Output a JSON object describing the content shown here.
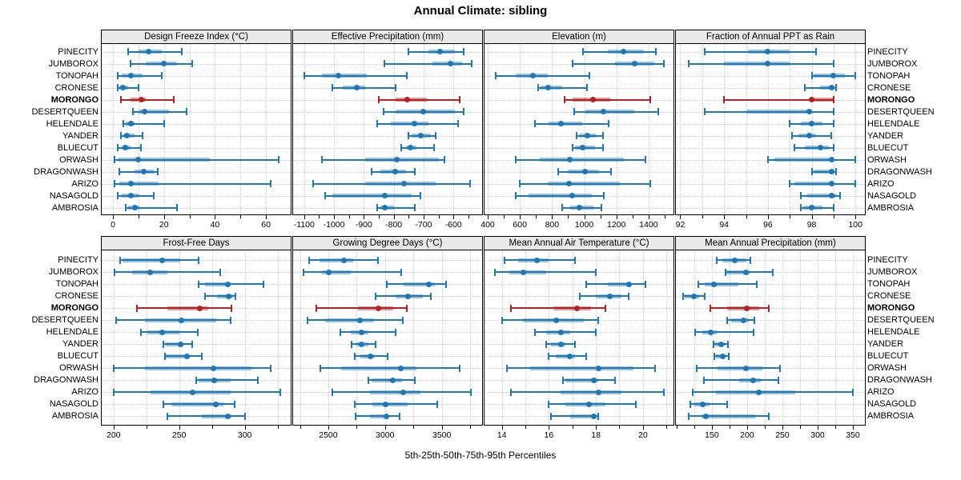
{
  "title": "Annual Climate: sibling",
  "caption": "5th-25th-50th-75th-95th Percentiles",
  "colors": {
    "series": "#1f78b4",
    "highlight": "#b22222",
    "band_alpha": 0.45,
    "header_bg": "#e9e9e9",
    "grid": "#c8c8c8"
  },
  "sites": [
    "PINECITY",
    "JUMBOROX",
    "TONOPAH",
    "CRONESE",
    "MORONGO",
    "DESERTQUEEN",
    "HELENDALE",
    "YANDER",
    "BLUECUT",
    "ORWASH",
    "DRAGONWASH",
    "ARIZO",
    "NASAGOLD",
    "AMBROSIA"
  ],
  "highlight_site": "MORONGO",
  "chart_data": {
    "type": "dotplot-percentile-trellis",
    "layout": "2 rows x 4 cols, site labels on both sides",
    "percentile_levels": [
      5,
      25,
      50,
      75,
      95
    ],
    "grid": "dotted",
    "panels": [
      {
        "label": "Design Freeze Index (°C)",
        "axis": {
          "min": -4.4,
          "max": 69.7,
          "tick_step": 10,
          "grid_step": 10,
          "labels": [
            0,
            20,
            40,
            60
          ]
        },
        "series": [
          [
            6,
            10,
            14,
            19,
            27
          ],
          [
            7,
            13,
            20,
            25,
            31
          ],
          [
            2,
            3.5,
            7,
            11.5,
            19
          ],
          [
            2,
            2.5,
            4,
            6,
            10
          ],
          [
            3,
            7,
            11,
            13,
            24
          ],
          [
            8,
            10,
            12.5,
            22,
            29
          ],
          [
            4,
            5,
            7,
            8.5,
            20
          ],
          [
            3,
            4,
            5.5,
            8.5,
            11.5
          ],
          [
            2,
            3.5,
            5,
            7,
            11
          ],
          [
            0.5,
            2,
            10,
            38,
            65
          ],
          [
            2.5,
            8.5,
            12,
            16,
            17.5
          ],
          [
            0.5,
            2.5,
            7,
            18,
            62
          ],
          [
            2,
            3.5,
            7,
            10,
            16
          ],
          [
            5,
            6,
            8.5,
            10.5,
            25
          ]
        ]
      },
      {
        "label": "Effective Precipitation (mm)",
        "axis": {
          "min": -1137,
          "max": -504,
          "tick_step": 50,
          "grid_step": 100,
          "labels": [
            -1100,
            -1000,
            -900,
            -800,
            -700,
            -600
          ]
        },
        "series": [
          [
            -750,
            -685,
            -645,
            -595,
            -565
          ],
          [
            -830,
            -670,
            -610,
            -570,
            -540
          ],
          [
            -1100,
            -1040,
            -985,
            -890,
            -755
          ],
          [
            -1005,
            -970,
            -925,
            -895,
            -795
          ],
          [
            -850,
            -795,
            -755,
            -690,
            -580
          ],
          [
            -835,
            -795,
            -700,
            -595,
            -565
          ],
          [
            -855,
            -810,
            -730,
            -685,
            -585
          ],
          [
            -750,
            -740,
            -710,
            -675,
            -660
          ],
          [
            -775,
            -760,
            -745,
            -725,
            -665
          ],
          [
            -1040,
            -895,
            -790,
            -650,
            -630
          ],
          [
            -875,
            -845,
            -795,
            -760,
            -730
          ],
          [
            -1070,
            -895,
            -765,
            -660,
            -545
          ],
          [
            -1030,
            -1005,
            -830,
            -740,
            -710
          ],
          [
            -855,
            -845,
            -830,
            -800,
            -730
          ]
        ]
      },
      {
        "label": "Elevation (m)",
        "axis": {
          "min": 380,
          "max": 1555,
          "tick_step": 100,
          "grid_step": 200,
          "labels": [
            400,
            600,
            800,
            1000,
            1200,
            1400
          ]
        },
        "series": [
          [
            990,
            1145,
            1245,
            1370,
            1445
          ],
          [
            930,
            1190,
            1315,
            1435,
            1495
          ],
          [
            450,
            575,
            680,
            775,
            1030
          ],
          [
            715,
            730,
            775,
            865,
            1015
          ],
          [
            880,
            930,
            1055,
            1160,
            1410
          ],
          [
            940,
            1005,
            1120,
            1310,
            1460
          ],
          [
            695,
            780,
            855,
            985,
            1150
          ],
          [
            955,
            970,
            1020,
            1070,
            1115
          ],
          [
            930,
            945,
            990,
            1065,
            1115
          ],
          [
            575,
            725,
            910,
            1245,
            1380
          ],
          [
            840,
            900,
            1005,
            1090,
            1165
          ],
          [
            600,
            775,
            905,
            1220,
            1410
          ],
          [
            575,
            655,
            925,
            1045,
            1120
          ],
          [
            865,
            915,
            970,
            1055,
            1105
          ]
        ]
      },
      {
        "label": "Fraction of Annual PPT as Rain",
        "axis": {
          "min": 91.8,
          "max": 100.43,
          "tick_step": 1,
          "grid_step": 1,
          "labels": [
            92,
            94,
            96,
            98,
            100
          ]
        },
        "series": [
          [
            93.1,
            95.1,
            96,
            97,
            98.2
          ],
          [
            92.4,
            94,
            96,
            97,
            99
          ],
          [
            98,
            98.1,
            99,
            99.5,
            100
          ],
          [
            97.7,
            98.4,
            98.9,
            99,
            99.1
          ],
          [
            94,
            97.9,
            98,
            99,
            99
          ],
          [
            93.1,
            95,
            97.9,
            98,
            99
          ],
          [
            97,
            97.5,
            98,
            98.5,
            99
          ],
          [
            97.1,
            97.4,
            97.9,
            98.2,
            98.9
          ],
          [
            97.2,
            97.7,
            98.4,
            98.8,
            99
          ],
          [
            96,
            96.3,
            98.9,
            99,
            100
          ],
          [
            98,
            98.1,
            98.9,
            99,
            99.1
          ],
          [
            97,
            97.2,
            98.9,
            99,
            100
          ],
          [
            97.5,
            97.8,
            98.9,
            99.1,
            99.3
          ],
          [
            97.5,
            97.6,
            98,
            98.5,
            99
          ]
        ]
      },
      {
        "label": "Frost-Free Days",
        "axis": {
          "min": 191,
          "max": 335,
          "tick_step": 25,
          "grid_step": 25,
          "labels": [
            200,
            250,
            300
          ]
        },
        "series": [
          [
            205,
            207,
            237,
            251,
            265
          ],
          [
            201,
            214,
            228,
            241,
            281
          ],
          [
            265,
            270,
            287,
            289,
            314
          ],
          [
            270,
            279,
            288,
            291,
            293
          ],
          [
            218,
            241,
            266,
            272,
            290
          ],
          [
            202,
            224,
            252,
            278,
            289
          ],
          [
            221,
            226,
            237,
            250,
            264
          ],
          [
            238,
            240,
            251,
            253,
            260
          ],
          [
            239,
            240,
            256,
            258,
            267
          ],
          [
            200,
            224,
            276,
            305,
            320
          ],
          [
            263,
            265,
            277,
            289,
            310
          ],
          [
            200,
            228,
            260,
            289,
            327
          ],
          [
            238,
            244,
            278,
            284,
            292
          ],
          [
            241,
            267,
            287,
            290,
            300
          ]
        ]
      },
      {
        "label": "Growing Degree Days (°C)",
        "axis": {
          "min": 2190,
          "max": 3855,
          "tick_step": 250,
          "grid_step": 250,
          "labels": [
            2500,
            3000,
            3500
          ]
        },
        "series": [
          [
            2330,
            2420,
            2635,
            2720,
            2935
          ],
          [
            2280,
            2445,
            2505,
            2695,
            3140
          ],
          [
            3015,
            3165,
            3385,
            3440,
            3535
          ],
          [
            2915,
            3095,
            3205,
            3330,
            3400
          ],
          [
            2395,
            2760,
            2940,
            3075,
            3190
          ],
          [
            2315,
            2475,
            2780,
            2905,
            3160
          ],
          [
            2605,
            2695,
            2795,
            2855,
            3095
          ],
          [
            2705,
            2745,
            2795,
            2855,
            2915
          ],
          [
            2730,
            2780,
            2870,
            2910,
            3025
          ],
          [
            2430,
            2610,
            3140,
            3275,
            3655
          ],
          [
            2850,
            2880,
            3065,
            3150,
            3260
          ],
          [
            2535,
            2865,
            3160,
            3315,
            3755
          ],
          [
            2735,
            2885,
            3005,
            3200,
            3460
          ],
          [
            2740,
            2865,
            3010,
            3030,
            3130
          ]
        ]
      },
      {
        "label": "Mean Annual Air Temperature (°C)",
        "axis": {
          "min": 13.26,
          "max": 21.3,
          "tick_step": 1,
          "grid_step": 1,
          "labels": [
            14,
            16,
            18,
            20
          ]
        },
        "series": [
          [
            14.1,
            14.7,
            15.5,
            16,
            17.1
          ],
          [
            13.7,
            14.3,
            14.9,
            15.9,
            18
          ],
          [
            17.6,
            18.5,
            19.4,
            19.5,
            20.1
          ],
          [
            17.3,
            18,
            18.6,
            19.1,
            19.4
          ],
          [
            14.4,
            16.2,
            17.2,
            17.8,
            18.4
          ],
          [
            14,
            14.9,
            16.3,
            17.5,
            18.1
          ],
          [
            15.4,
            15.9,
            16.5,
            16.9,
            18
          ],
          [
            15.9,
            16.1,
            16.5,
            16.7,
            17.1
          ],
          [
            16,
            16.3,
            16.9,
            17.1,
            17.6
          ],
          [
            14.2,
            15.2,
            18.1,
            19.6,
            20.5
          ],
          [
            16.6,
            16.7,
            17.9,
            18.1,
            18.8
          ],
          [
            14.4,
            16.5,
            18.1,
            19.1,
            20.9
          ],
          [
            16,
            16.7,
            17.7,
            18.4,
            19.7
          ],
          [
            16.1,
            16.9,
            17.9,
            18,
            18.1
          ]
        ]
      },
      {
        "label": "Mean Annual Precipitation (mm)",
        "axis": {
          "min": 99,
          "max": 367,
          "tick_step": 25,
          "grid_step": 25,
          "labels": [
            150,
            200,
            250,
            300,
            350
          ]
        },
        "series": [
          [
            157,
            165,
            183,
            199,
            205
          ],
          [
            169,
            171,
            198,
            204,
            236
          ],
          [
            131,
            140,
            153,
            188,
            214
          ],
          [
            109,
            112,
            125,
            132,
            140
          ],
          [
            148,
            172,
            199,
            217,
            231
          ],
          [
            172,
            177,
            195,
            202,
            210
          ],
          [
            126,
            137,
            148,
            157,
            209
          ],
          [
            152,
            155,
            163,
            168,
            173
          ],
          [
            153,
            156,
            165,
            169,
            174
          ],
          [
            128,
            158,
            198,
            222,
            247
          ],
          [
            139,
            189,
            209,
            219,
            244
          ],
          [
            123,
            156,
            217,
            268,
            350
          ],
          [
            120,
            125,
            137,
            147,
            172
          ],
          [
            117,
            135,
            142,
            211,
            231
          ]
        ]
      }
    ]
  }
}
